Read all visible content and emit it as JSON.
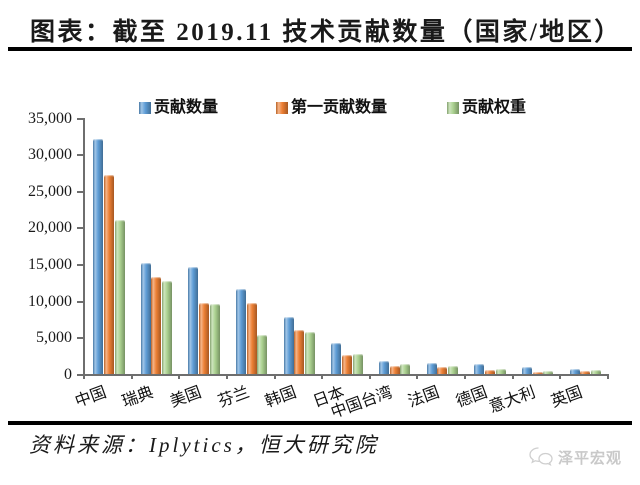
{
  "title": "图表：截至 2019.11 技术贡献数量（国家/地区）",
  "source_note": "资料来源：Iplytics，恒大研究院",
  "watermark": {
    "icon": "wechat-bubbles-icon",
    "label": "泽平宏观"
  },
  "colors": {
    "bar_blue": "#5B9BD5",
    "bar_orange": "#ED7D31",
    "bar_green": "#A9D08E",
    "axis": "#6E6E6E",
    "rule": "#000000",
    "title_text": "#1A1A1A",
    "watermark_gray": "#C9C9C9"
  },
  "chart_data": {
    "type": "bar",
    "title": "截至 2019.11 技术贡献数量（国家/地区）",
    "categories": [
      "中国",
      "瑞典",
      "美国",
      "芬兰",
      "韩国",
      "日本",
      "中国台湾",
      "法国",
      "德国",
      "意大利",
      "英国"
    ],
    "series": [
      {
        "name": "贡献数量",
        "color": "#5B9BD5",
        "values": [
          32100,
          15100,
          14550,
          11600,
          7800,
          4200,
          1750,
          1550,
          1400,
          950,
          650
        ]
      },
      {
        "name": "第一贡献数量",
        "color": "#ED7D31",
        "values": [
          27100,
          13250,
          9700,
          9650,
          5950,
          2650,
          1150,
          1000,
          500,
          300,
          450
        ]
      },
      {
        "name": "贡献权重",
        "color": "#A9D08E",
        "values": [
          21000,
          12750,
          9500,
          5300,
          5700,
          2700,
          1300,
          1050,
          650,
          400,
          500
        ]
      }
    ],
    "xlabel": "",
    "ylabel": "",
    "ylim": [
      0,
      35000
    ],
    "ytick_step": 5000,
    "ytick_labels": [
      "0",
      "5,000",
      "10,000",
      "15,000",
      "20,000",
      "25,000",
      "30,000",
      "35,000"
    ],
    "grid": false,
    "legend_position": "top"
  }
}
